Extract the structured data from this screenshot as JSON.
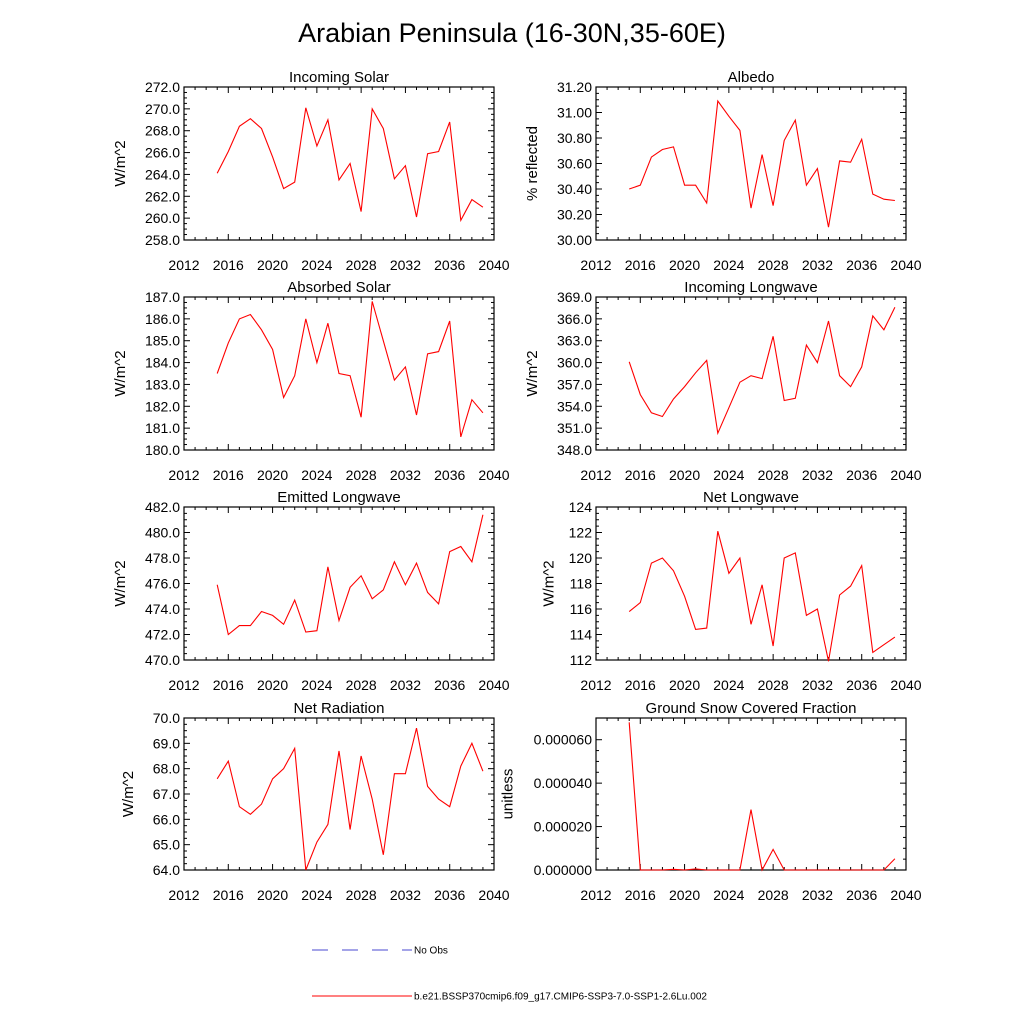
{
  "figure": {
    "title": "Arabian Peninsula (16-30N,35-60E)",
    "line_color": "#ff0000",
    "obs_color": "#4a4ad0",
    "legend": [
      {
        "label": "No Obs",
        "style": "dashed",
        "color": "#4a4ad0"
      },
      {
        "label": "b.e21.BSSP370cmip6.f09_g17.CMIP6-SSP3-7.0-SSP1-2.6Lu.002",
        "style": "solid",
        "color": "#ff0000"
      }
    ]
  },
  "chart_data": [
    {
      "type": "line",
      "title": "Incoming Solar",
      "ylabel": "W/m^2",
      "xlim": [
        2012,
        2040
      ],
      "ylim": [
        258,
        272
      ],
      "xticks": [
        2012,
        2016,
        2020,
        2024,
        2028,
        2032,
        2036,
        2040
      ],
      "yticks": [
        "258.0",
        "260.0",
        "262.0",
        "264.0",
        "266.0",
        "268.0",
        "270.0",
        "272.0"
      ],
      "series": [
        {
          "x": [
            2015,
            2016,
            2017,
            2018,
            2019,
            2020,
            2021,
            2022,
            2023,
            2024,
            2025,
            2026,
            2027,
            2028,
            2029,
            2030,
            2031,
            2032,
            2033,
            2034,
            2035,
            2036,
            2037,
            2038,
            2039
          ],
          "y": [
            264.1,
            266.1,
            268.4,
            269.1,
            268.2,
            265.6,
            262.7,
            263.3,
            270.1,
            266.6,
            269.0,
            263.5,
            265.0,
            260.6,
            270.0,
            268.2,
            263.6,
            264.8,
            260.1,
            265.9,
            266.1,
            268.8,
            259.8,
            261.7,
            261.0
          ]
        }
      ]
    },
    {
      "type": "line",
      "title": "Albedo",
      "ylabel": "% reflected",
      "xlim": [
        2012,
        2040
      ],
      "ylim": [
        30.0,
        31.2
      ],
      "xticks": [
        2012,
        2016,
        2020,
        2024,
        2028,
        2032,
        2036,
        2040
      ],
      "yticks": [
        "30.00",
        "30.20",
        "30.40",
        "30.60",
        "30.80",
        "31.00",
        "31.20"
      ],
      "series": [
        {
          "x": [
            2015,
            2016,
            2017,
            2018,
            2019,
            2020,
            2021,
            2022,
            2023,
            2024,
            2025,
            2026,
            2027,
            2028,
            2029,
            2030,
            2031,
            2032,
            2033,
            2034,
            2035,
            2036,
            2037,
            2038,
            2039
          ],
          "y": [
            30.4,
            30.43,
            30.65,
            30.71,
            30.73,
            30.43,
            30.43,
            30.29,
            31.09,
            30.97,
            30.86,
            30.25,
            30.67,
            30.27,
            30.78,
            30.94,
            30.43,
            30.56,
            30.1,
            30.62,
            30.61,
            30.79,
            30.36,
            30.32,
            30.31
          ]
        }
      ]
    },
    {
      "type": "line",
      "title": "Absorbed Solar",
      "ylabel": "W/m^2",
      "xlim": [
        2012,
        2040
      ],
      "ylim": [
        180,
        187
      ],
      "xticks": [
        2012,
        2016,
        2020,
        2024,
        2028,
        2032,
        2036,
        2040
      ],
      "yticks": [
        "180.0",
        "181.0",
        "182.0",
        "183.0",
        "184.0",
        "185.0",
        "186.0",
        "187.0"
      ],
      "series": [
        {
          "x": [
            2015,
            2016,
            2017,
            2018,
            2019,
            2020,
            2021,
            2022,
            2023,
            2024,
            2025,
            2026,
            2027,
            2028,
            2029,
            2030,
            2031,
            2032,
            2033,
            2034,
            2035,
            2036,
            2037,
            2038,
            2039
          ],
          "y": [
            183.5,
            184.9,
            186.0,
            186.2,
            185.5,
            184.6,
            182.4,
            183.4,
            186.0,
            184.0,
            185.8,
            183.5,
            183.4,
            181.5,
            186.8,
            185.0,
            183.2,
            183.8,
            181.6,
            184.4,
            184.5,
            185.9,
            180.6,
            182.3,
            181.7
          ]
        }
      ]
    },
    {
      "type": "line",
      "title": "Incoming Longwave",
      "ylabel": "W/m^2",
      "xlim": [
        2012,
        2040
      ],
      "ylim": [
        348,
        369
      ],
      "xticks": [
        2012,
        2016,
        2020,
        2024,
        2028,
        2032,
        2036,
        2040
      ],
      "yticks": [
        "348.0",
        "351.0",
        "354.0",
        "357.0",
        "360.0",
        "363.0",
        "366.0",
        "369.0"
      ],
      "series": [
        {
          "x": [
            2015,
            2016,
            2017,
            2018,
            2019,
            2020,
            2021,
            2022,
            2023,
            2024,
            2025,
            2026,
            2027,
            2028,
            2029,
            2030,
            2031,
            2032,
            2033,
            2034,
            2035,
            2036,
            2037,
            2038,
            2039
          ],
          "y": [
            360.1,
            355.6,
            353.1,
            352.6,
            355.0,
            356.7,
            358.6,
            360.3,
            350.3,
            353.8,
            357.3,
            358.2,
            357.8,
            363.6,
            354.8,
            355.1,
            362.4,
            360.0,
            365.7,
            358.2,
            356.7,
            359.4,
            366.4,
            364.5,
            367.6
          ]
        }
      ]
    },
    {
      "type": "line",
      "title": "Emitted Longwave",
      "ylabel": "W/m^2",
      "xlim": [
        2012,
        2040
      ],
      "ylim": [
        470,
        482
      ],
      "xticks": [
        2012,
        2016,
        2020,
        2024,
        2028,
        2032,
        2036,
        2040
      ],
      "yticks": [
        "470.0",
        "472.0",
        "474.0",
        "476.0",
        "478.0",
        "480.0",
        "482.0"
      ],
      "series": [
        {
          "x": [
            2015,
            2016,
            2017,
            2018,
            2019,
            2020,
            2021,
            2022,
            2023,
            2024,
            2025,
            2026,
            2027,
            2028,
            2029,
            2030,
            2031,
            2032,
            2033,
            2034,
            2035,
            2036,
            2037,
            2038,
            2039
          ],
          "y": [
            475.9,
            472.0,
            472.7,
            472.7,
            473.8,
            473.5,
            472.8,
            474.7,
            472.2,
            472.3,
            477.3,
            473.1,
            475.7,
            476.6,
            474.8,
            475.5,
            477.7,
            475.9,
            477.6,
            475.3,
            474.4,
            478.5,
            478.9,
            477.7,
            481.4
          ]
        }
      ]
    },
    {
      "type": "line",
      "title": "Net Longwave",
      "ylabel": "W/m^2",
      "xlim": [
        2012,
        2040
      ],
      "ylim": [
        112,
        124
      ],
      "xticks": [
        2012,
        2016,
        2020,
        2024,
        2028,
        2032,
        2036,
        2040
      ],
      "yticks": [
        "112",
        "114",
        "116",
        "118",
        "120",
        "122",
        "124"
      ],
      "series": [
        {
          "x": [
            2015,
            2016,
            2017,
            2018,
            2019,
            2020,
            2021,
            2022,
            2023,
            2024,
            2025,
            2026,
            2027,
            2028,
            2029,
            2030,
            2031,
            2032,
            2033,
            2034,
            2035,
            2036,
            2037,
            2038,
            2039
          ],
          "y": [
            115.8,
            116.5,
            119.6,
            120.0,
            119.0,
            117.0,
            114.4,
            114.5,
            122.1,
            118.8,
            120.0,
            114.8,
            117.9,
            113.1,
            120.0,
            120.4,
            115.5,
            116.0,
            111.9,
            117.1,
            117.8,
            119.4,
            112.6,
            113.2,
            113.8
          ]
        }
      ]
    },
    {
      "type": "line",
      "title": "Net Radiation",
      "ylabel": "W/m^2",
      "xlim": [
        2012,
        2040
      ],
      "ylim": [
        64,
        70
      ],
      "xticks": [
        2012,
        2016,
        2020,
        2024,
        2028,
        2032,
        2036,
        2040
      ],
      "yticks": [
        "64.0",
        "65.0",
        "66.0",
        "67.0",
        "68.0",
        "69.0",
        "70.0"
      ],
      "series": [
        {
          "x": [
            2015,
            2016,
            2017,
            2018,
            2019,
            2020,
            2021,
            2022,
            2023,
            2024,
            2025,
            2026,
            2027,
            2028,
            2029,
            2030,
            2031,
            2032,
            2033,
            2034,
            2035,
            2036,
            2037,
            2038,
            2039
          ],
          "y": [
            67.6,
            68.3,
            66.5,
            66.2,
            66.6,
            67.6,
            68.0,
            68.8,
            64.0,
            65.1,
            65.8,
            68.7,
            65.6,
            68.5,
            66.8,
            64.6,
            67.8,
            67.8,
            69.6,
            67.3,
            66.8,
            66.5,
            68.1,
            69.0,
            67.9
          ]
        }
      ]
    },
    {
      "type": "line",
      "title": "Ground Snow Covered Fraction",
      "ylabel": "unitless",
      "xlim": [
        2012,
        2040
      ],
      "ylim": [
        0,
        7e-05
      ],
      "xticks": [
        2012,
        2016,
        2020,
        2024,
        2028,
        2032,
        2036,
        2040
      ],
      "ytick_values": [
        0,
        2e-05,
        4e-05,
        6e-05
      ],
      "yticks": [
        "0.000000",
        "0.000020",
        "0.000040",
        "0.000060"
      ],
      "series": [
        {
          "x": [
            2015,
            2016,
            2017,
            2018,
            2019,
            2020,
            2021,
            2022,
            2023,
            2024,
            2025,
            2026,
            2027,
            2028,
            2029,
            2030,
            2031,
            2032,
            2033,
            2034,
            2035,
            2036,
            2037,
            2038,
            2039
          ],
          "y": [
            6.8e-05,
            0,
            0,
            0,
            3e-07,
            0,
            5e-07,
            0,
            0,
            0,
            0,
            2.78e-05,
            0,
            9.5e-06,
            0,
            0,
            0,
            0,
            0,
            0,
            0,
            0,
            0,
            0,
            5.2e-06
          ]
        }
      ]
    }
  ]
}
